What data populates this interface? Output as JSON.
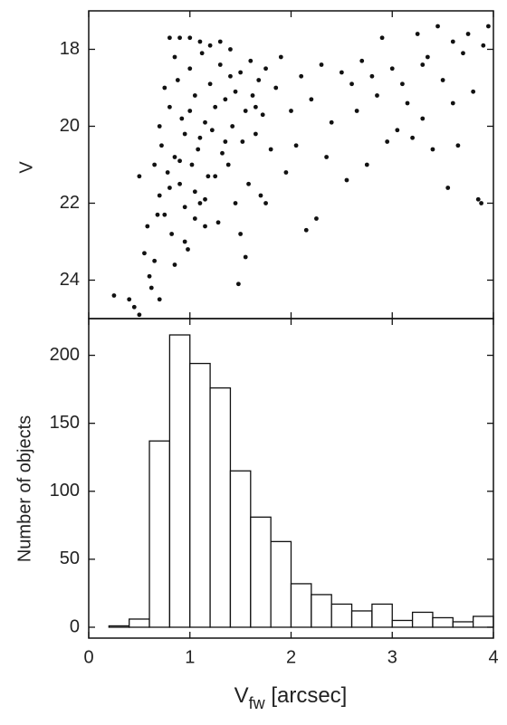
{
  "chart_data": [
    {
      "type": "scatter",
      "y_label": "V",
      "color": "#111",
      "xlim": [
        0,
        4
      ],
      "xticks": [
        0,
        1,
        2,
        3,
        4
      ],
      "ylim": [
        25,
        17
      ],
      "yticks": [
        18,
        20,
        22,
        24
      ],
      "x": [
        0.25,
        0.4,
        0.45,
        0.5,
        0.55,
        0.6,
        0.62,
        0.65,
        0.7,
        0.5,
        0.65,
        0.7,
        0.72,
        0.75,
        0.78,
        0.8,
        0.82,
        0.85,
        0.88,
        0.9,
        0.92,
        0.95,
        0.98,
        1.0,
        1.02,
        1.05,
        1.08,
        1.1,
        1.12,
        1.15,
        1.18,
        1.2,
        1.22,
        1.25,
        1.28,
        1.3,
        1.32,
        1.35,
        1.38,
        1.4,
        1.42,
        1.45,
        1.48,
        1.5,
        1.52,
        1.55,
        1.58,
        1.6,
        1.62,
        1.65,
        1.68,
        1.7,
        1.72,
        1.75,
        1.8,
        1.85,
        1.9,
        1.95,
        2.0,
        2.05,
        2.1,
        2.15,
        2.2,
        2.25,
        2.3,
        2.35,
        2.4,
        2.5,
        2.55,
        2.6,
        2.65,
        2.7,
        2.75,
        2.8,
        2.85,
        2.9,
        2.95,
        3.0,
        3.05,
        3.1,
        3.15,
        3.2,
        3.25,
        3.3,
        3.35,
        3.4,
        3.45,
        3.5,
        3.55,
        3.6,
        3.65,
        3.7,
        3.75,
        3.8,
        3.85,
        3.9,
        3.95,
        3.88,
        3.6,
        3.3,
        0.7,
        0.75,
        0.8,
        0.85,
        0.9,
        0.95,
        1.0,
        1.05,
        1.1,
        1.15,
        0.8,
        0.9,
        1.0,
        1.1,
        1.2,
        1.3,
        1.4,
        1.5,
        0.68,
        0.58,
        0.85,
        0.95,
        1.05,
        1.15,
        1.25,
        1.35,
        1.45,
        1.55,
        1.65,
        1.75
      ],
      "y": [
        24.4,
        24.5,
        24.7,
        24.9,
        23.3,
        23.9,
        24.2,
        23.5,
        24.5,
        21.3,
        21.0,
        21.8,
        20.5,
        22.3,
        21.2,
        19.5,
        22.8,
        20.8,
        18.8,
        21.5,
        19.8,
        20.2,
        23.2,
        18.5,
        21.0,
        19.2,
        20.6,
        22.0,
        18.1,
        19.9,
        21.3,
        18.9,
        20.1,
        19.5,
        22.5,
        18.4,
        20.7,
        19.3,
        21.0,
        18.7,
        20.0,
        19.1,
        24.1,
        18.6,
        20.4,
        19.6,
        21.5,
        18.3,
        19.2,
        20.2,
        18.8,
        21.8,
        19.7,
        18.5,
        20.6,
        19.0,
        18.2,
        21.2,
        19.6,
        20.5,
        18.7,
        22.7,
        19.3,
        22.4,
        18.4,
        20.8,
        19.9,
        18.6,
        21.4,
        18.9,
        19.6,
        18.3,
        21.0,
        18.7,
        19.2,
        17.7,
        20.4,
        18.5,
        20.1,
        18.9,
        19.4,
        20.3,
        17.6,
        19.8,
        18.2,
        20.6,
        17.4,
        18.8,
        21.6,
        17.8,
        20.5,
        18.1,
        17.6,
        19.1,
        21.9,
        17.9,
        17.4,
        22.0,
        19.4,
        18.4,
        20.0,
        19.0,
        21.6,
        18.2,
        20.9,
        22.1,
        19.6,
        21.7,
        20.3,
        22.6,
        17.7,
        17.7,
        17.7,
        17.8,
        17.9,
        17.8,
        18.0,
        22.8,
        22.3,
        22.6,
        23.6,
        23.0,
        22.4,
        21.9,
        21.3,
        20.4,
        22.0,
        23.4,
        19.5,
        22.0
      ]
    },
    {
      "type": "histogram",
      "y_label": "Number of objects",
      "x_label": {
        "main": "V",
        "sub": "fw",
        "rest": " [arcsec]"
      },
      "color": "#ffffff",
      "xlim": [
        0,
        4
      ],
      "xticks": [
        0,
        1,
        2,
        3,
        4
      ],
      "ylim": [
        -8,
        227
      ],
      "yticks": [
        0,
        50,
        100,
        150,
        200
      ],
      "bins": [
        0.2,
        0.4,
        0.6,
        0.8,
        1.0,
        1.2,
        1.4,
        1.6,
        1.8,
        2.0,
        2.2,
        2.4,
        2.6,
        2.8,
        3.0,
        3.2,
        3.4,
        3.6,
        3.8,
        4.0
      ],
      "counts": [
        1,
        6,
        137,
        215,
        194,
        176,
        115,
        81,
        63,
        32,
        24,
        17,
        12,
        17,
        5,
        11,
        7,
        4,
        8
      ]
    }
  ]
}
